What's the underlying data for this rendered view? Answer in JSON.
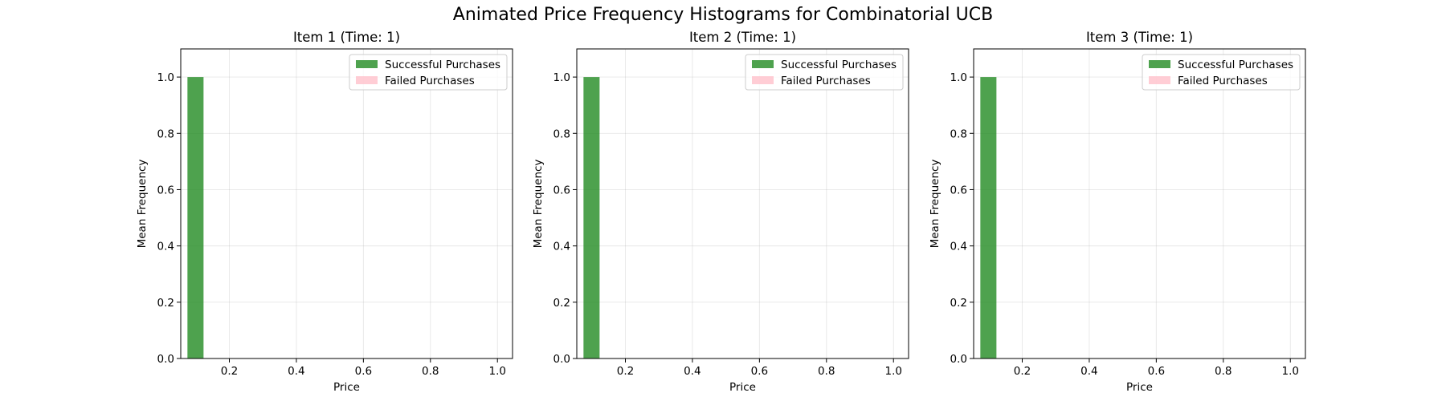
{
  "figure": {
    "suptitle": "Animated Price Frequency Histograms for Combinatorial UCB"
  },
  "chart_data": [
    {
      "type": "bar",
      "title": "Item 1 (Time: 1)",
      "xlabel": "Price",
      "ylabel": "Mean Frequency",
      "xlim": [
        0.055,
        1.045
      ],
      "ylim": [
        0,
        1.1
      ],
      "xticks": [
        "0.2",
        "0.4",
        "0.6",
        "0.8",
        "1.0"
      ],
      "yticks": [
        "0.0",
        "0.2",
        "0.4",
        "0.6",
        "0.8",
        "1.0"
      ],
      "grid": true,
      "legend_position": "top-right",
      "bin_edges": [
        0.1,
        0.1477,
        0.1954,
        0.2431,
        0.2908,
        0.3385,
        0.3862,
        0.4339,
        0.4816,
        0.5293,
        0.577,
        0.6247,
        0.6724,
        0.7201,
        0.7678,
        0.8155,
        0.8632,
        0.9109,
        0.9586,
        1.0
      ],
      "series": [
        {
          "name": "Successful Purchases",
          "color": "#228B22",
          "bins": [
            {
              "x0": 0.075,
              "x1": 0.123,
              "value": 1.0
            }
          ]
        },
        {
          "name": "Failed Purchases",
          "color": "#FFC0CB",
          "bins": []
        }
      ]
    },
    {
      "type": "bar",
      "title": "Item 2 (Time: 1)",
      "xlabel": "Price",
      "ylabel": "Mean Frequency",
      "xlim": [
        0.055,
        1.045
      ],
      "ylim": [
        0,
        1.1
      ],
      "xticks": [
        "0.2",
        "0.4",
        "0.6",
        "0.8",
        "1.0"
      ],
      "yticks": [
        "0.0",
        "0.2",
        "0.4",
        "0.6",
        "0.8",
        "1.0"
      ],
      "grid": true,
      "legend_position": "top-right",
      "series": [
        {
          "name": "Successful Purchases",
          "color": "#228B22",
          "bins": [
            {
              "x0": 0.075,
              "x1": 0.123,
              "value": 1.0
            }
          ]
        },
        {
          "name": "Failed Purchases",
          "color": "#FFC0CB",
          "bins": []
        }
      ]
    },
    {
      "type": "bar",
      "title": "Item 3 (Time: 1)",
      "xlabel": "Price",
      "ylabel": "Mean Frequency",
      "xlim": [
        0.055,
        1.045
      ],
      "ylim": [
        0,
        1.1
      ],
      "xticks": [
        "0.2",
        "0.4",
        "0.6",
        "0.8",
        "1.0"
      ],
      "yticks": [
        "0.0",
        "0.2",
        "0.4",
        "0.6",
        "0.8",
        "1.0"
      ],
      "grid": true,
      "legend_position": "top-right",
      "series": [
        {
          "name": "Successful Purchases",
          "color": "#228B22",
          "bins": [
            {
              "x0": 0.075,
              "x1": 0.123,
              "value": 1.0
            }
          ]
        },
        {
          "name": "Failed Purchases",
          "color": "#FFC0CB",
          "bins": []
        }
      ]
    }
  ]
}
